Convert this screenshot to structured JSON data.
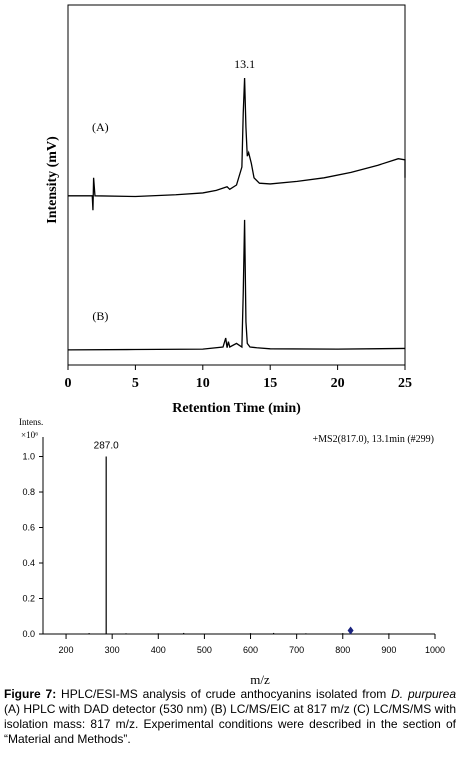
{
  "chart_data": [
    {
      "type": "line",
      "xlabel": "Retention Time (min)",
      "ylabel": "Intensity (mV)",
      "annotations": [
        "(A)",
        "(B)",
        "13.1"
      ],
      "xlim": [
        0,
        25
      ],
      "xticks": [
        0,
        5,
        10,
        15,
        20,
        25
      ],
      "ylim": [
        0,
        100
      ],
      "series": [
        {
          "color": "#000000",
          "x": [
            0,
            1.8,
            1.85,
            1.9,
            2.0,
            5,
            8,
            10,
            11,
            11.8,
            12,
            12.5,
            12.9,
            13.0,
            13.1,
            13.2,
            13.3,
            13.4,
            13.6,
            13.8,
            14.2,
            15,
            17,
            19,
            21,
            23,
            24.5,
            25,
            25
          ],
          "values": [
            47,
            47,
            43,
            52,
            47,
            46.8,
            47.3,
            47.8,
            48.5,
            49.5,
            48.8,
            50,
            55,
            70,
            79.7,
            66,
            58,
            59,
            56,
            52,
            50.5,
            50.3,
            51,
            52,
            53.5,
            55.5,
            57.3,
            57,
            52
          ]
        },
        {
          "color": "#000000",
          "x": [
            0,
            5,
            10,
            11.5,
            11.7,
            11.8,
            11.9,
            12.0,
            12.5,
            12.9,
            13.0,
            13.1,
            13.2,
            13.3,
            13.5,
            14,
            15,
            20,
            25
          ],
          "values": [
            4.2,
            4.3,
            4.4,
            5,
            7.5,
            4.8,
            6.5,
            5,
            6,
            5,
            20,
            40.3,
            12,
            6,
            5,
            4.8,
            4.5,
            4.4,
            4.6
          ]
        }
      ]
    },
    {
      "type": "stem",
      "xlabel": "m/z",
      "ylabel": "Intens.",
      "y_unit": "×10⁶",
      "annotations": [
        "+MS2(817.0), 13.1min (#299)"
      ],
      "xlim": [
        150,
        1000
      ],
      "xticks": [
        200,
        300,
        400,
        500,
        600,
        700,
        800,
        900,
        1000
      ],
      "ylim": [
        0,
        1.11
      ],
      "yticks": [
        {
          "value": 0,
          "label": "0.0"
        },
        0.2,
        0.4,
        0.6,
        0.8,
        {
          "value": 1,
          "label": "1.0"
        }
      ],
      "color": "#000000",
      "x": [
        250,
        287,
        330,
        400,
        455,
        600,
        650,
        720,
        800,
        817,
        900
      ],
      "values": [
        0.005,
        1.0,
        0.004,
        0.004,
        0.006,
        0.005,
        0.006,
        0.004,
        0.005,
        0.02,
        0.004
      ],
      "value_labels": [
        null,
        "287.0",
        null,
        null,
        null,
        null,
        null,
        null,
        null,
        null,
        null
      ]
    }
  ],
  "caption": {
    "label": "Figure 7:",
    "text_1": " HPLC/ESI-MS analysis of crude anthocyanins isolated from ",
    "italic": "D. purpurea",
    "text_2": " (A) HPLC with DAD detector (530 nm) (B) LC/MS/EIC at 817 m/z (C) LC/MS/MS with isolation mass: 817 m/z. Experimental conditions were described in the section of “Material and Methods”."
  }
}
